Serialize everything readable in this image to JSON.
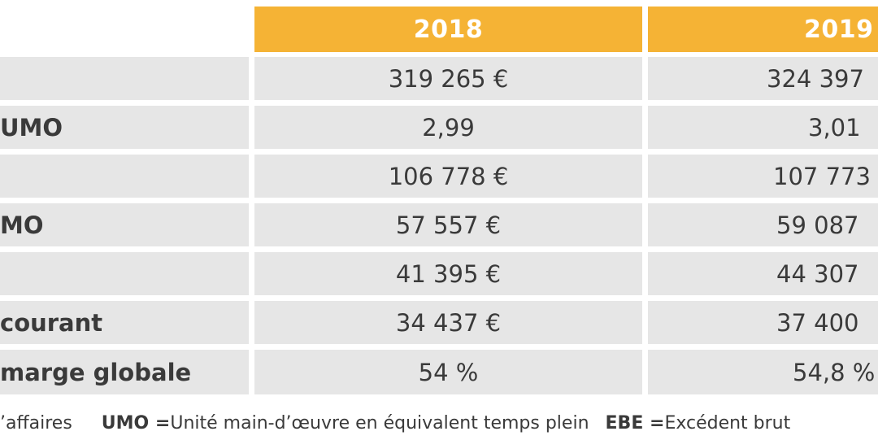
{
  "table": {
    "columns": [
      "2018",
      "2019"
    ],
    "rows": [
      {
        "label": "",
        "v2018": "319 265 €",
        "v2019": "324 397"
      },
      {
        "label": "UMO",
        "v2018": "2,99",
        "v2019": "3,01"
      },
      {
        "label": "",
        "v2018": "106 778 €",
        "v2019": "107 773"
      },
      {
        "label": "MO",
        "v2018": "57 557 €",
        "v2019": "59 087"
      },
      {
        "label": "",
        "v2018": "41 395 €",
        "v2019": "44 307"
      },
      {
        "label": "courant",
        "v2018": "34 437 €",
        "v2019": "37 400"
      },
      {
        "label": "marge globale",
        "v2018": "54 %",
        "v2019": "54,8 %"
      }
    ]
  },
  "legend": {
    "item1": "’affaires",
    "umo_abbr": "UMO =",
    "umo_def": " Unité main-d’œuvre en équivalent temps plein",
    "ebe_abbr": "EBE =",
    "ebe_def": " Excédent brut"
  },
  "colors": {
    "header": "#f5b335",
    "cell": "#e6e6e6",
    "text": "#3a3a3a"
  }
}
